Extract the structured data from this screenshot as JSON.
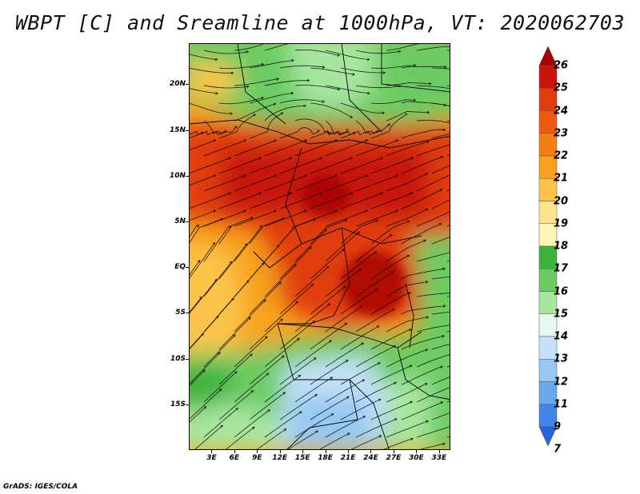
{
  "title": "WBPT [C] and Sreamline at 1000hPa, VT: 2020062703",
  "map": {
    "lat_labels": [
      "20N",
      "15N",
      "10N",
      "5N",
      "EQ",
      "5S",
      "10S",
      "15S"
    ],
    "lat_values": [
      20,
      15,
      10,
      5,
      0,
      -5,
      -10,
      -15
    ],
    "lon_labels": [
      "3E",
      "6E",
      "9E",
      "12E",
      "15E",
      "18E",
      "21E",
      "24E",
      "27E",
      "30E",
      "33E"
    ],
    "lon_values": [
      3,
      6,
      9,
      12,
      15,
      18,
      21,
      24,
      27,
      30,
      33
    ],
    "lon_range": [
      0,
      34.5
    ],
    "lat_range": [
      -20,
      24.5
    ]
  },
  "colorbar": {
    "labels": [
      "26",
      "25",
      "24",
      "23",
      "22",
      "21",
      "20",
      "19",
      "18",
      "17",
      "16",
      "15",
      "14",
      "13",
      "12",
      "11",
      "9",
      "7"
    ],
    "colors": [
      "#a50000",
      "#c8140a",
      "#e03c0c",
      "#f05a10",
      "#f47e12",
      "#f8a21c",
      "#fcc44a",
      "#fde48c",
      "#fff6b4",
      "#3cb43c",
      "#6ccc64",
      "#a8e6a0",
      "#e6f8f0",
      "#c4e2fa",
      "#96c8f2",
      "#6aaaec",
      "#4086e6",
      "#2a64dc"
    ]
  },
  "footer": "GrADS: IGES/COLA"
}
